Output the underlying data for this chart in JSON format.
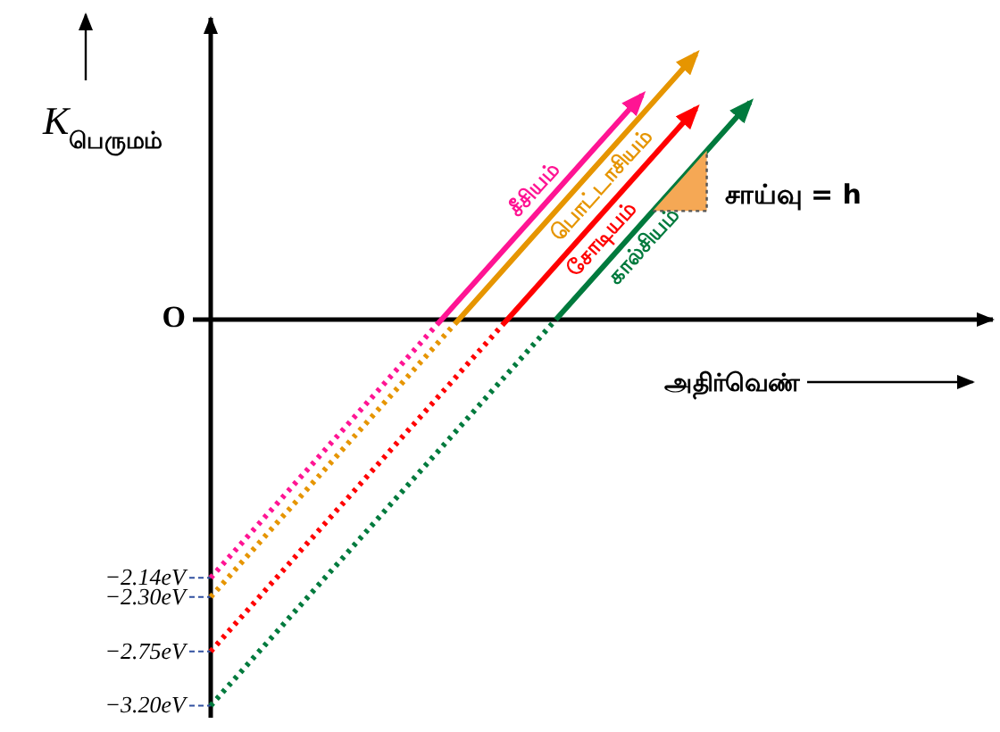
{
  "chart_data": {
    "type": "line",
    "ylabel": "K$_{பெருமம்}$",
    "xlabel": "அதிர்வெண்",
    "annotations": [
      "சாய்வு = h"
    ],
    "categories": [
      null,
      null,
      null,
      null,
      null,
      null,
      null,
      null,
      null,
      null,
      null
    ],
    "ylim": [
      -3.3,
      2.5
    ],
    "yticks": [
      {
        "value": 0,
        "label": "O"
      },
      {
        "value": -2.14,
        "label": "−2.14eV"
      },
      {
        "value": -2.3,
        "label": "−2.30eV"
      },
      {
        "value": -2.75,
        "label": "−2.75eV"
      },
      {
        "value": -3.2,
        "label": "−3.20eV"
      }
    ],
    "tick_labels": "y",
    "legend": false,
    "line_style": "dotted",
    "series": [
      {
        "name": "சீசியம்",
        "color": "#ff1493",
        "values": [
          -2.14,
          -1.64,
          -1.14,
          -0.64,
          -0.14,
          0.36,
          0.86,
          1.36,
          1.86,
          null,
          null
        ]
      },
      {
        "name": "பொட்டாசியம்",
        "color": "#e69500",
        "values": [
          -2.3,
          -1.8,
          -1.3,
          -0.8,
          -0.3,
          0.2,
          0.7,
          1.2,
          1.7,
          2.2,
          null
        ]
      },
      {
        "name": "சோடியம்",
        "color": "#ff0000",
        "values": [
          -2.75,
          -2.25,
          -1.75,
          -1.25,
          -0.75,
          -0.25,
          0.25,
          0.75,
          1.25,
          1.75,
          null
        ]
      },
      {
        "name": "கால்சியம்",
        "color": "#007a3d",
        "values": [
          -3.2,
          -2.7,
          -2.2,
          -1.7,
          -1.2,
          -0.7,
          -0.2,
          0.3,
          0.8,
          1.3,
          1.8
        ]
      }
    ]
  }
}
